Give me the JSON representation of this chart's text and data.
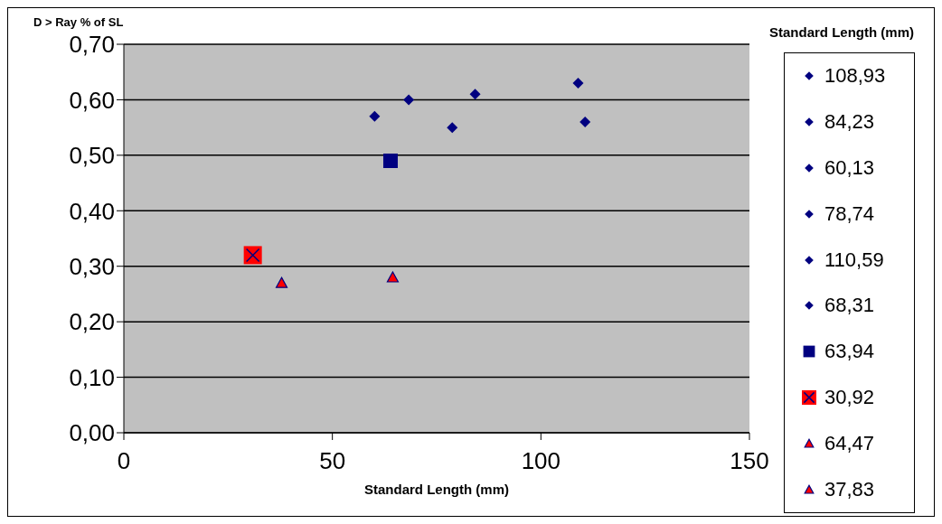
{
  "chart_data": {
    "type": "scatter",
    "ylabel": "D > Ray % of SL",
    "xlabel": "Standard Length (mm)",
    "legend_title": "Standard Length (mm)",
    "legend": "right",
    "grid": "y",
    "xlim": [
      0,
      150
    ],
    "xticks": [
      0,
      50,
      100,
      150
    ],
    "ylim": [
      0,
      0.7
    ],
    "yticks": [
      {
        "value": 0,
        "label": "0,00"
      },
      {
        "value": 0.1,
        "label": "0,10"
      },
      {
        "value": 0.2,
        "label": "0,20"
      },
      {
        "value": 0.3,
        "label": "0,30"
      },
      {
        "value": 0.4,
        "label": "0,40"
      },
      {
        "value": 0.5,
        "label": "0,50"
      },
      {
        "value": 0.6,
        "label": "0,60"
      },
      {
        "value": 0.7,
        "label": "0,70"
      }
    ],
    "series": [
      {
        "name": "108,93",
        "color": "#000080",
        "marker": "diamond",
        "x": [
          108.93
        ],
        "values": [
          0.63
        ]
      },
      {
        "name": "84,23",
        "color": "#000080",
        "marker": "diamond",
        "x": [
          84.23
        ],
        "values": [
          0.61
        ]
      },
      {
        "name": "60,13",
        "color": "#000080",
        "marker": "diamond",
        "x": [
          60.13
        ],
        "values": [
          0.57
        ]
      },
      {
        "name": "78,74",
        "color": "#000080",
        "marker": "diamond",
        "x": [
          78.74
        ],
        "values": [
          0.55
        ]
      },
      {
        "name": "110,59",
        "color": "#000080",
        "marker": "diamond",
        "x": [
          110.59
        ],
        "values": [
          0.56
        ]
      },
      {
        "name": "68,31",
        "color": "#000080",
        "marker": "diamond",
        "x": [
          68.31
        ],
        "values": [
          0.6
        ]
      },
      {
        "name": "63,94",
        "color": "#000080",
        "marker": "square",
        "x": [
          63.94
        ],
        "values": [
          0.49
        ]
      },
      {
        "name": "30,92",
        "color": "#ff0000",
        "marker": "square",
        "x": [
          30.92
        ],
        "values": [
          0.32
        ]
      },
      {
        "name": "64,47",
        "color": "#ff0000",
        "marker": "triangle",
        "x": [
          64.47
        ],
        "values": [
          0.28
        ]
      },
      {
        "name": "37,83",
        "color": "#ff0000",
        "marker": "triangle",
        "x": [
          37.83
        ],
        "values": [
          0.27
        ]
      }
    ]
  }
}
